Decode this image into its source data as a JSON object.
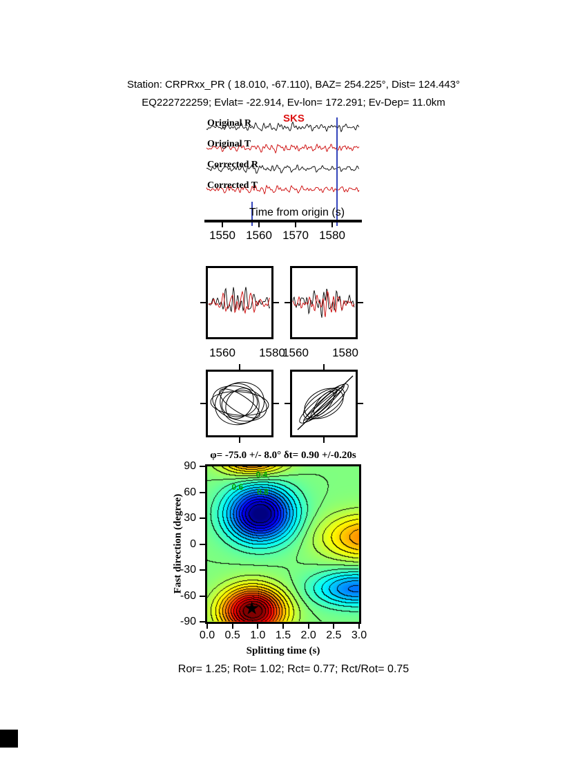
{
  "header": {
    "line1": "Station: CRPRxx_PR (  18.010,  -67.110), BAZ=  254.225°, Dist=  124.443°",
    "line2": "EQ222722259; Evlat= -22.914, Ev-lon= 172.291; Ev-Dep= 11.0km"
  },
  "footer": {
    "stats": "Ror= 1.25; Rot= 1.02; Rct= 0.77; Rct/Rot= 0.75"
  },
  "chart_data": [
    {
      "id": "seismogram-traces",
      "type": "line",
      "series": [
        {
          "name": "Original R",
          "color": "#000000"
        },
        {
          "name": "Original T",
          "color": "#cc0000"
        },
        {
          "name": "Corrected R",
          "color": "#000000"
        },
        {
          "name": "Corrected T",
          "color": "#cc0000"
        }
      ],
      "phase_label": {
        "text": "SKS",
        "color": "#dd1111"
      },
      "xlabel": "Time from origin (s)",
      "xticks": [
        1550,
        1560,
        1570,
        1580
      ],
      "xrange": [
        1545,
        1588
      ],
      "x_window_markers": [
        1558.2,
        1581.4
      ],
      "marker_color": "#3344bb"
    },
    {
      "id": "zoom-window-left",
      "type": "line",
      "xticks": [
        1560,
        1580
      ],
      "series": [
        {
          "name": "R",
          "color": "#000000"
        },
        {
          "name": "T",
          "color": "#cc0000"
        }
      ]
    },
    {
      "id": "zoom-window-right",
      "type": "line",
      "xticks": [
        1560,
        1580
      ],
      "series": [
        {
          "name": "R",
          "color": "#000000"
        },
        {
          "name": "T",
          "color": "#cc0000"
        }
      ]
    },
    {
      "id": "particle-motion-original",
      "type": "line",
      "description": "particle motion hodogram, elliptical uncorrected motion"
    },
    {
      "id": "particle-motion-corrected",
      "type": "line",
      "description": "particle motion hodogram, linearized corrected motion"
    },
    {
      "id": "misfit-surface",
      "type": "heatmap",
      "title": "φ= -75.0 +/- 8.0° δt= 0.90 +/-0.20s",
      "xlabel": "Splitting time (s)",
      "ylabel": "Fast direction (degree)",
      "xlim": [
        0,
        3
      ],
      "ylim": [
        -90,
        90
      ],
      "xticks": [
        "0.0",
        "0.5",
        "1.0",
        "1.5",
        "2.0",
        "2.5",
        "3.0"
      ],
      "yticks": [
        90,
        60,
        30,
        0,
        -30,
        -60,
        -90
      ],
      "best_solution": {
        "phi_deg": -75.0,
        "phi_err_deg": 8.0,
        "dt_s": 0.9,
        "dt_err_s": 0.2
      },
      "star": {
        "dt_s": 0.9,
        "phi_deg": -75
      },
      "star_glyph": "★",
      "inline_labels": [
        {
          "text": "0.4",
          "t": 1.1,
          "phi": 80
        },
        {
          "text": "0.6",
          "t": 0.62,
          "phi": 65
        },
        {
          "text": "0.8",
          "t": 1.12,
          "phi": 60
        }
      ],
      "label_color": "#00aa00",
      "base_level": 0.5,
      "contour_step": 0.0416,
      "blobs": [
        {
          "t": 1.05,
          "st": 0.62,
          "phi": 35,
          "sp": 30,
          "amp": -0.52
        },
        {
          "t": 0.9,
          "st": 0.6,
          "phi": -78,
          "sp": 26,
          "amp": 0.55
        },
        {
          "t": 0.9,
          "st": 0.6,
          "phi": 102,
          "sp": 20,
          "amp": 0.35
        },
        {
          "t": 3.15,
          "st": 0.85,
          "phi": 8,
          "sp": 26,
          "amp": 0.24
        },
        {
          "t": 2.95,
          "st": 0.8,
          "phi": -52,
          "sp": 20,
          "amp": -0.26
        }
      ]
    }
  ]
}
